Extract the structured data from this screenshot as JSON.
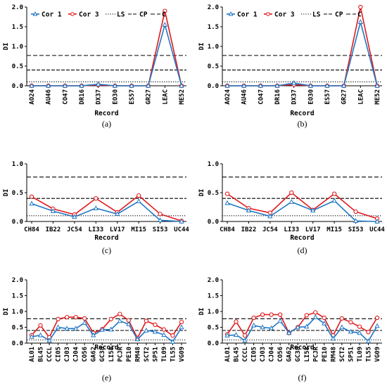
{
  "chart_data": [
    {
      "type": "line",
      "caption": "(a)",
      "xlabel": "Record",
      "ylabel": "DI",
      "ylim": [
        0,
        2
      ],
      "yticks": [
        "0.0",
        "0.5",
        "1.0",
        "1.5",
        "2.0"
      ],
      "categories": [
        "AO24",
        "AU46",
        "CO47",
        "DR16",
        "DX37",
        "EO30",
        "ES57",
        "GR27",
        "LEAC",
        "ME52"
      ],
      "series": [
        {
          "name": "Cor 1",
          "color": "#1f77c4",
          "marker": "triangle",
          "values": [
            0,
            0,
            0,
            0,
            0.04,
            0,
            0,
            0,
            1.55,
            0
          ]
        },
        {
          "name": "Cor 3",
          "color": "#e0191c",
          "marker": "circle",
          "values": [
            0,
            0,
            0,
            0,
            0.02,
            0,
            0,
            0,
            1.9,
            0
          ]
        }
      ],
      "hlines": {
        "LS": 0.1,
        "CP": 0.4,
        "C": 0.77
      },
      "legend": [
        "Cor 1",
        "Cor 3",
        "LS",
        "CP",
        "C"
      ]
    },
    {
      "type": "line",
      "caption": "(b)",
      "xlabel": "Record",
      "ylabel": "DI",
      "ylim": [
        0,
        2
      ],
      "yticks": [
        "0.0",
        "0.5",
        "1.0",
        "1.5",
        "2.0"
      ],
      "categories": [
        "AO24",
        "AU46",
        "CO47",
        "DR16",
        "DX37",
        "EO30",
        "ES57",
        "GR27",
        "LEAC",
        "ME52"
      ],
      "series": [
        {
          "name": "Cor 1",
          "color": "#1f77c4",
          "marker": "triangle",
          "values": [
            0,
            0,
            0,
            0,
            0.07,
            0,
            0,
            0,
            1.62,
            0
          ]
        },
        {
          "name": "Cor 3",
          "color": "#e0191c",
          "marker": "circle",
          "values": [
            0,
            0,
            0,
            0,
            0.03,
            0,
            0,
            0,
            2.0,
            0
          ]
        }
      ],
      "hlines": {
        "LS": 0.1,
        "CP": 0.4,
        "C": 0.77
      },
      "legend": [
        "Cor 1",
        "Cor 3",
        "LS",
        "CP",
        "C"
      ]
    },
    {
      "type": "line",
      "caption": "(c)",
      "xlabel": "Record",
      "ylabel": "DI",
      "ylim": [
        0,
        1
      ],
      "yticks": [
        "0.0",
        "0.5",
        "1.0"
      ],
      "categories": [
        "CH84",
        "IB22",
        "JC54",
        "LI33",
        "LV17",
        "MI15",
        "SI53",
        "UC44"
      ],
      "series": [
        {
          "name": "Cor 1",
          "color": "#1f77c4",
          "marker": "triangle",
          "values": [
            0.31,
            0.18,
            0.08,
            0.23,
            0.13,
            0.35,
            0.02,
            0.0
          ]
        },
        {
          "name": "Cor 3",
          "color": "#e0191c",
          "marker": "circle",
          "values": [
            0.43,
            0.22,
            0.12,
            0.4,
            0.16,
            0.45,
            0.13,
            0.01
          ]
        }
      ],
      "hlines": {
        "LS": 0.1,
        "CP": 0.4,
        "C": 0.77
      }
    },
    {
      "type": "line",
      "caption": "(d)",
      "xlabel": "Record",
      "ylabel": "DI",
      "ylim": [
        0,
        1
      ],
      "yticks": [
        "0.0",
        "0.5",
        "1.0"
      ],
      "categories": [
        "CH84",
        "IB22",
        "JC54",
        "LI33",
        "LV17",
        "MI15",
        "SI53",
        "UC44"
      ],
      "series": [
        {
          "name": "Cor 1",
          "color": "#1f77c4",
          "marker": "triangle",
          "values": [
            0.32,
            0.19,
            0.09,
            0.34,
            0.19,
            0.36,
            0.01,
            0.0
          ]
        },
        {
          "name": "Cor 3",
          "color": "#e0191c",
          "marker": "circle",
          "values": [
            0.48,
            0.23,
            0.15,
            0.5,
            0.2,
            0.48,
            0.17,
            0.05
          ]
        }
      ],
      "hlines": {
        "LS": 0.1,
        "CP": 0.4,
        "C": 0.77
      }
    },
    {
      "type": "line",
      "caption": "(e)",
      "xlabel": "Record",
      "ylabel": "DI",
      "ylim": [
        0,
        2
      ],
      "yticks": [
        "0.0",
        "0.5",
        "1.0",
        "1.5",
        "2.0"
      ],
      "categories": [
        "AL01",
        "BL45",
        "CCCL",
        "CI05",
        "CJ03",
        "CJ04",
        "CO56",
        "GA62",
        "GC38",
        "LI58",
        "PCJR",
        "PE10",
        "RM48",
        "SCT2",
        "SP51",
        "TL09",
        "TL55",
        "VG09"
      ],
      "series": [
        {
          "name": "Cor 1",
          "color": "#1f77c4",
          "marker": "triangle",
          "values": [
            0.2,
            0.25,
            0.08,
            0.5,
            0.46,
            0.46,
            0.64,
            0.25,
            0.42,
            0.43,
            0.7,
            0.6,
            0.12,
            0.4,
            0.36,
            0.26,
            0.04,
            0.5
          ]
        },
        {
          "name": "Cor 3",
          "color": "#e0191c",
          "marker": "circle",
          "values": [
            0.25,
            0.56,
            0.18,
            0.76,
            0.82,
            0.82,
            0.78,
            0.32,
            0.44,
            0.76,
            0.92,
            0.72,
            0.16,
            0.7,
            0.58,
            0.43,
            0.24,
            0.67
          ]
        }
      ],
      "hlines": {
        "LS": 0.1,
        "CP": 0.4,
        "C": 0.77
      }
    },
    {
      "type": "line",
      "caption": "(f)",
      "xlabel": "Record",
      "ylabel": "DI",
      "ylim": [
        0,
        2
      ],
      "yticks": [
        "0.0",
        "0.5",
        "1.0",
        "1.5",
        "2.0"
      ],
      "categories": [
        "AL01",
        "BL45",
        "CCCL",
        "CI05",
        "CJ03",
        "CJ04",
        "CO56",
        "GA62",
        "GC38",
        "LI58",
        "PCJR",
        "PE10",
        "RM48",
        "SCT2",
        "SP51",
        "TL09",
        "TL55",
        "VG09"
      ],
      "series": [
        {
          "name": "Cor 1",
          "color": "#1f77c4",
          "marker": "triangle",
          "values": [
            0.24,
            0.26,
            0.08,
            0.56,
            0.5,
            0.47,
            0.7,
            0.32,
            0.5,
            0.52,
            0.82,
            0.62,
            0.14,
            0.5,
            0.36,
            0.32,
            0.06,
            0.54
          ]
        },
        {
          "name": "Cor 3",
          "color": "#e0191c",
          "marker": "circle",
          "values": [
            0.28,
            0.68,
            0.24,
            0.8,
            0.9,
            0.9,
            0.9,
            0.32,
            0.5,
            0.88,
            0.97,
            0.8,
            0.24,
            0.78,
            0.66,
            0.52,
            0.35,
            0.8
          ]
        }
      ],
      "hlines": {
        "LS": 0.1,
        "CP": 0.4,
        "C": 0.77
      }
    }
  ]
}
